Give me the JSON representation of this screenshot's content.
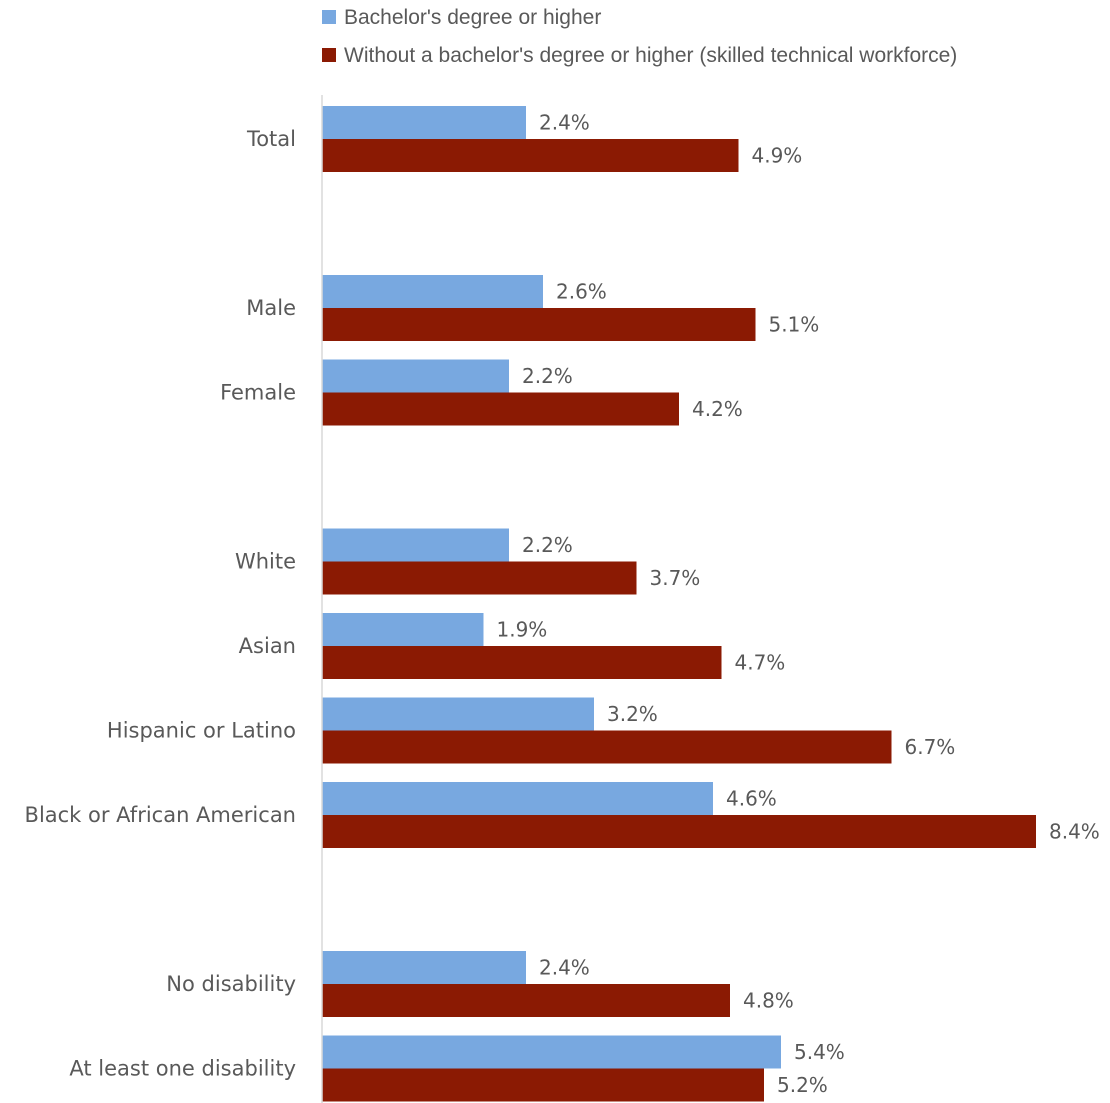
{
  "chart_data": {
    "type": "bar",
    "orientation": "horizontal",
    "legend_position": "top",
    "grid": false,
    "xlim": [
      0,
      8.4
    ],
    "value_suffix": "%",
    "groups": [
      [
        "Total"
      ],
      [
        "Male",
        "Female"
      ],
      [
        "White",
        "Asian",
        "Hispanic or Latino",
        "Black or African American"
      ],
      [
        "No disability",
        "At least one disability"
      ]
    ],
    "categories": [
      "Total",
      "Male",
      "Female",
      "White",
      "Asian",
      "Hispanic or Latino",
      "Black or African American",
      "No disability",
      "At least one disability"
    ],
    "series": [
      {
        "name": "Bachelor's degree or higher",
        "color": "#78a8e0",
        "values": [
          2.4,
          2.6,
          2.2,
          2.2,
          1.9,
          3.2,
          4.6,
          2.4,
          5.4
        ]
      },
      {
        "name": "Without a bachelor's degree or higher (skilled technical workforce)",
        "color": "#8b1a03",
        "values": [
          4.9,
          5.1,
          4.2,
          3.7,
          4.7,
          6.7,
          8.4,
          4.8,
          5.2
        ]
      }
    ],
    "axis_color": "#d9d9d9"
  }
}
